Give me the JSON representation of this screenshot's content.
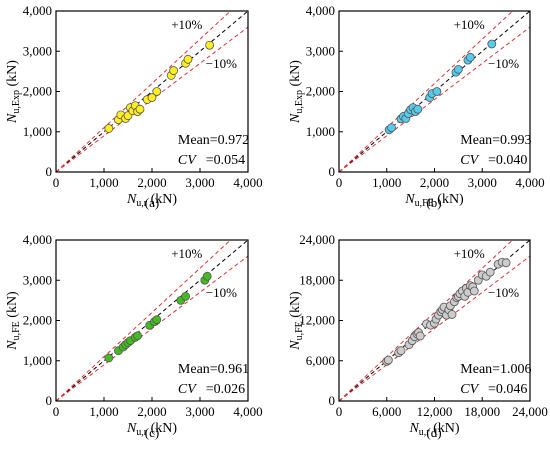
{
  "chart_data": [
    {
      "type": "scatter",
      "panel_label": "(a)",
      "xlabel_main": "N",
      "xlabel_sub": "u,r",
      "xlabel_unit": " (kN)",
      "ylabel_main": "N",
      "ylabel_sub": "u,Exp",
      "ylabel_unit": " (kN)",
      "xlim": [
        0,
        4000
      ],
      "ylim": [
        0,
        4000
      ],
      "xticks": [
        "0",
        "1,000",
        "2,000",
        "3,000",
        "4,000"
      ],
      "yticks": [
        "0",
        "1,000",
        "2,000",
        "3,000",
        "4,000"
      ],
      "plus_label": "+10%",
      "minus_label": "−10%",
      "mean_label": "Mean=0.972",
      "cv_label": "CV",
      "cv_value": "=0.054",
      "marker_color": "#ffee22",
      "points": [
        [
          1100,
          1080
        ],
        [
          1300,
          1300
        ],
        [
          1350,
          1420
        ],
        [
          1450,
          1330
        ],
        [
          1500,
          1400
        ],
        [
          1550,
          1600
        ],
        [
          1600,
          1520
        ],
        [
          1650,
          1650
        ],
        [
          1700,
          1500
        ],
        [
          1750,
          1560
        ],
        [
          1900,
          1800
        ],
        [
          2000,
          1850
        ],
        [
          2100,
          2000
        ],
        [
          2400,
          2400
        ],
        [
          2450,
          2520
        ],
        [
          2700,
          2700
        ],
        [
          2750,
          2800
        ],
        [
          3200,
          3150
        ]
      ]
    },
    {
      "type": "scatter",
      "panel_label": "(b)",
      "xlabel_main": "N",
      "xlabel_sub": "u,FE",
      "xlabel_unit": " (kN)",
      "ylabel_main": "N",
      "ylabel_sub": "u,Exp",
      "ylabel_unit": " (kN)",
      "xlim": [
        0,
        4000
      ],
      "ylim": [
        0,
        4000
      ],
      "xticks": [
        "0",
        "1,000",
        "2,000",
        "3,000",
        "4,000"
      ],
      "yticks": [
        "0",
        "1,000",
        "2,000",
        "3,000",
        "4,000"
      ],
      "plus_label": "+10%",
      "minus_label": "−10%",
      "mean_label": "Mean=0.993",
      "cv_label": "CV",
      "cv_value": "=0.040",
      "marker_color": "#55ccee",
      "points": [
        [
          1050,
          1050
        ],
        [
          1100,
          1100
        ],
        [
          1300,
          1320
        ],
        [
          1350,
          1380
        ],
        [
          1400,
          1330
        ],
        [
          1450,
          1450
        ],
        [
          1500,
          1550
        ],
        [
          1550,
          1600
        ],
        [
          1600,
          1500
        ],
        [
          1650,
          1560
        ],
        [
          1900,
          1850
        ],
        [
          1950,
          1950
        ],
        [
          2050,
          2000
        ],
        [
          2450,
          2480
        ],
        [
          2500,
          2550
        ],
        [
          2700,
          2780
        ],
        [
          2750,
          2850
        ],
        [
          3200,
          3180
        ]
      ]
    },
    {
      "type": "scatter",
      "panel_label": "(c)",
      "xlabel_main": "N",
      "xlabel_sub": "u,r",
      "xlabel_unit": " (kN)",
      "ylabel_main": "N",
      "ylabel_sub": "u,FE",
      "ylabel_unit": " (kN)",
      "xlim": [
        0,
        4000
      ],
      "ylim": [
        0,
        4000
      ],
      "xticks": [
        "0",
        "1,000",
        "2,000",
        "3,000",
        "4,000"
      ],
      "yticks": [
        "0",
        "1,000",
        "2,000",
        "3,000",
        "4,000"
      ],
      "plus_label": "+10%",
      "minus_label": "−10%",
      "mean_label": "Mean=0.961",
      "cv_label": "CV",
      "cv_value": "=0.026",
      "marker_color": "#44bb22",
      "points": [
        [
          1100,
          1070
        ],
        [
          1300,
          1250
        ],
        [
          1400,
          1340
        ],
        [
          1450,
          1400
        ],
        [
          1500,
          1450
        ],
        [
          1550,
          1500
        ],
        [
          1650,
          1580
        ],
        [
          1700,
          1620
        ],
        [
          1950,
          1880
        ],
        [
          2050,
          1970
        ],
        [
          2100,
          2020
        ],
        [
          2600,
          2500
        ],
        [
          2700,
          2600
        ],
        [
          3100,
          3000
        ],
        [
          3150,
          3100
        ]
      ]
    },
    {
      "type": "scatter",
      "panel_label": "(d)",
      "xlabel_main": "N",
      "xlabel_sub": "u,r",
      "xlabel_unit": " (kN)",
      "ylabel_main": "N",
      "ylabel_sub": "u,FE",
      "ylabel_unit": " (kN)",
      "xlim": [
        0,
        24000
      ],
      "ylim": [
        0,
        24000
      ],
      "xticks": [
        "0",
        "6,000",
        "12,000",
        "18,000",
        "24,000"
      ],
      "yticks": [
        "0",
        "6,000",
        "12,000",
        "18,000",
        "24,000"
      ],
      "plus_label": "+10%",
      "minus_label": "−10%",
      "mean_label": "Mean=1.006",
      "cv_label": "CV",
      "cv_value": "=0.046",
      "marker_color": "#cccccc",
      "points": [
        [
          6000,
          5900
        ],
        [
          6200,
          6100
        ],
        [
          7500,
          7200
        ],
        [
          7800,
          7500
        ],
        [
          8800,
          8400
        ],
        [
          9200,
          9000
        ],
        [
          9500,
          9600
        ],
        [
          9800,
          10000
        ],
        [
          10000,
          10200
        ],
        [
          10200,
          9700
        ],
        [
          11000,
          11500
        ],
        [
          11500,
          11300
        ],
        [
          12000,
          11600
        ],
        [
          12200,
          12200
        ],
        [
          12500,
          12800
        ],
        [
          12800,
          13300
        ],
        [
          13000,
          13600
        ],
        [
          13200,
          14000
        ],
        [
          13500,
          12800
        ],
        [
          13800,
          13600
        ],
        [
          14000,
          14200
        ],
        [
          14200,
          12900
        ],
        [
          14500,
          14800
        ],
        [
          14800,
          15400
        ],
        [
          15000,
          15600
        ],
        [
          15200,
          16000
        ],
        [
          15500,
          16400
        ],
        [
          15800,
          15600
        ],
        [
          16000,
          16800
        ],
        [
          16200,
          16200
        ],
        [
          16500,
          17200
        ],
        [
          16800,
          17000
        ],
        [
          17000,
          16400
        ],
        [
          17500,
          18000
        ],
        [
          18000,
          18800
        ],
        [
          18500,
          18600
        ],
        [
          19000,
          19200
        ],
        [
          20000,
          20400
        ],
        [
          20500,
          20700
        ],
        [
          21000,
          20600
        ]
      ]
    }
  ]
}
